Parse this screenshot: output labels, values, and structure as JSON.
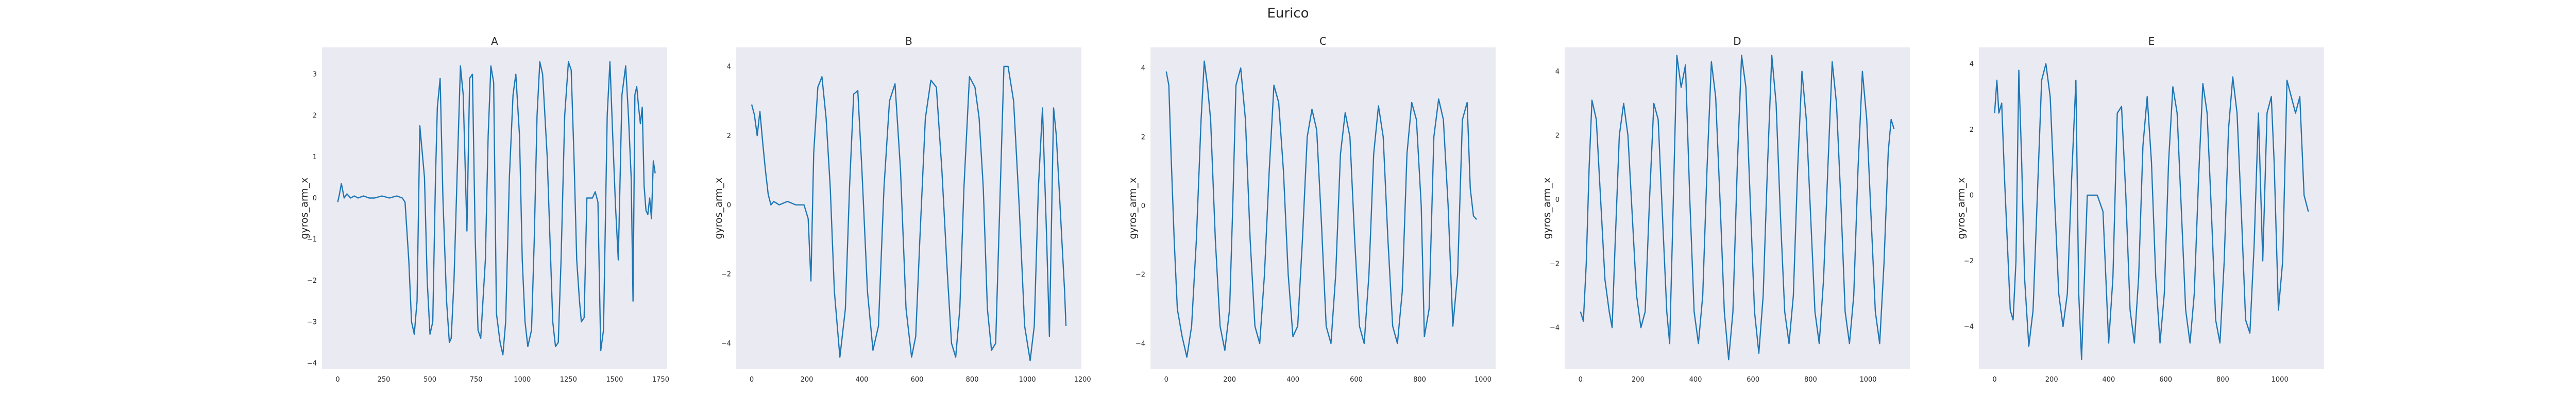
{
  "figure": {
    "title": "Eurico"
  },
  "chart_data": [
    {
      "type": "line",
      "title": "A",
      "ylabel": "gyros_arm_x",
      "xlim": [
        -85,
        1785
      ],
      "ylim": [
        -4.15,
        3.65
      ],
      "xticks": [
        0,
        250,
        500,
        750,
        1000,
        1250,
        1500,
        1750
      ],
      "yticks": [
        -4,
        -3,
        -2,
        -1,
        0,
        1,
        2,
        3
      ],
      "legend": "none",
      "grid": false,
      "color": "#1f77b4",
      "series": [
        {
          "x": [
            0,
            10,
            20,
            35,
            50,
            70,
            90,
            110,
            140,
            170,
            200,
            240,
            280,
            320,
            350,
            365,
            385,
            400,
            415,
            430,
            445,
            470,
            485,
            500,
            515,
            530,
            540,
            555,
            570,
            590,
            605,
            615,
            630,
            650,
            665,
            680,
            700,
            715,
            730,
            745,
            760,
            775,
            800,
            815,
            830,
            845,
            860,
            880,
            895,
            910,
            930,
            950,
            965,
            985,
            1000,
            1015,
            1030,
            1050,
            1065,
            1080,
            1095,
            1110,
            1135,
            1150,
            1165,
            1180,
            1195,
            1210,
            1230,
            1250,
            1265,
            1280,
            1295,
            1310,
            1320,
            1335,
            1350,
            1365,
            1380,
            1395,
            1410,
            1425,
            1440,
            1460,
            1475,
            1490,
            1505,
            1520,
            1540,
            1560,
            1575,
            1590,
            1600,
            1610,
            1620,
            1630,
            1640,
            1650,
            1660,
            1670,
            1680,
            1690,
            1700,
            1710,
            1720
          ],
          "y": [
            -0.1,
            0.1,
            0.35,
            0.0,
            0.1,
            0.0,
            0.05,
            0.0,
            0.05,
            0.0,
            0.0,
            0.05,
            0.0,
            0.05,
            0.0,
            -0.1,
            -1.5,
            -3.0,
            -3.3,
            -2.5,
            1.75,
            0.5,
            -2.0,
            -3.3,
            -3.0,
            0.5,
            2.2,
            2.9,
            0.0,
            -2.5,
            -3.5,
            -3.4,
            -2.0,
            1.0,
            3.2,
            2.5,
            -0.8,
            2.9,
            3.0,
            -1.0,
            -3.2,
            -3.4,
            -1.5,
            1.5,
            3.2,
            2.8,
            -2.8,
            -3.5,
            -3.8,
            -3.0,
            0.5,
            2.5,
            3.0,
            1.5,
            -1.5,
            -3.0,
            -3.6,
            -3.2,
            -1.0,
            2.0,
            3.3,
            3.0,
            1.0,
            -1.0,
            -3.0,
            -3.6,
            -3.5,
            -1.5,
            2.0,
            3.3,
            3.1,
            1.0,
            -1.5,
            -2.5,
            -3.0,
            -2.9,
            0.0,
            0.0,
            0.0,
            0.15,
            -0.1,
            -3.7,
            -3.2,
            2.0,
            3.3,
            1.5,
            -0.2,
            -1.5,
            2.5,
            3.2,
            2.0,
            0.5,
            -2.5,
            2.5,
            2.7,
            2.2,
            1.8,
            2.2,
            0.3,
            -0.3,
            -0.4,
            0.0,
            -0.5,
            0.9,
            0.6
          ]
        }
      ]
    },
    {
      "type": "line",
      "title": "B",
      "ylabel": "gyros_arm_x",
      "xlim": [
        -56,
        1196
      ],
      "ylim": [
        -4.75,
        4.55
      ],
      "xticks": [
        0,
        200,
        400,
        600,
        800,
        1000,
        1200
      ],
      "yticks": [
        -4,
        -2,
        0,
        2,
        4
      ],
      "legend": "none",
      "grid": false,
      "color": "#1f77b4",
      "series": [
        {
          "x": [
            0,
            10,
            20,
            30,
            40,
            50,
            60,
            70,
            80,
            100,
            130,
            160,
            190,
            205,
            215,
            225,
            240,
            255,
            270,
            285,
            300,
            320,
            340,
            355,
            370,
            385,
            400,
            420,
            440,
            460,
            480,
            500,
            520,
            540,
            560,
            580,
            595,
            610,
            630,
            650,
            670,
            690,
            710,
            725,
            740,
            755,
            770,
            790,
            810,
            825,
            840,
            855,
            870,
            885,
            900,
            915,
            930,
            950,
            970,
            990,
            1010,
            1025,
            1040,
            1055,
            1070,
            1080,
            1095,
            1105,
            1115,
            1125,
            1135,
            1140
          ],
          "y": [
            2.9,
            2.6,
            2.0,
            2.7,
            1.8,
            1.0,
            0.3,
            0.0,
            0.1,
            0.0,
            0.1,
            0.0,
            0.0,
            -0.4,
            -2.2,
            1.5,
            3.4,
            3.7,
            2.5,
            0.5,
            -2.5,
            -4.4,
            -3.0,
            0.5,
            3.2,
            3.3,
            1.0,
            -2.5,
            -4.2,
            -3.5,
            0.5,
            3.0,
            3.5,
            1.0,
            -3.0,
            -4.4,
            -3.8,
            -1.0,
            2.5,
            3.6,
            3.4,
            1.0,
            -2.0,
            -4.0,
            -4.4,
            -3.0,
            0.5,
            3.7,
            3.4,
            2.5,
            0.5,
            -3.0,
            -4.2,
            -4.0,
            0.0,
            4.0,
            4.0,
            3.0,
            0.0,
            -3.5,
            -4.5,
            -3.5,
            0.5,
            2.8,
            -1.0,
            -3.8,
            2.8,
            2.0,
            0.5,
            -1.0,
            -2.5,
            -3.5
          ]
        }
      ]
    },
    {
      "type": "line",
      "title": "C",
      "ylabel": "gyros_arm_x",
      "xlim": [
        -50,
        1040
      ],
      "ylim": [
        -4.75,
        4.6
      ],
      "xticks": [
        0,
        200,
        400,
        600,
        800,
        1000
      ],
      "yticks": [
        -4,
        -2,
        0,
        2,
        4
      ],
      "legend": "none",
      "grid": false,
      "color": "#1f77b4",
      "series": [
        {
          "x": [
            0,
            8,
            15,
            25,
            35,
            50,
            65,
            80,
            95,
            110,
            120,
            130,
            140,
            155,
            170,
            185,
            200,
            210,
            220,
            235,
            250,
            265,
            280,
            295,
            310,
            325,
            340,
            355,
            370,
            385,
            400,
            415,
            430,
            445,
            460,
            475,
            490,
            505,
            520,
            535,
            550,
            565,
            580,
            595,
            610,
            625,
            640,
            655,
            670,
            685,
            700,
            715,
            730,
            745,
            760,
            775,
            790,
            805,
            815,
            830,
            845,
            860,
            875,
            890,
            905,
            920,
            935,
            950,
            960,
            970,
            980
          ],
          "y": [
            3.9,
            3.5,
            1.5,
            -1.0,
            -3.0,
            -3.8,
            -4.4,
            -3.5,
            -1.0,
            2.5,
            4.2,
            3.5,
            2.5,
            -1.0,
            -3.5,
            -4.2,
            -3.0,
            0.0,
            3.5,
            4.0,
            2.5,
            -1.0,
            -3.5,
            -4.0,
            -2.0,
            1.0,
            3.5,
            3.0,
            1.0,
            -2.0,
            -3.8,
            -3.5,
            -1.0,
            2.0,
            2.8,
            2.2,
            -0.5,
            -3.5,
            -4.0,
            -2.0,
            1.5,
            2.7,
            2.0,
            -1.0,
            -3.5,
            -4.0,
            -2.0,
            1.5,
            2.9,
            2.0,
            -1.0,
            -3.5,
            -4.0,
            -2.5,
            1.5,
            3.0,
            2.5,
            0.0,
            -3.8,
            -3.0,
            2.0,
            3.1,
            2.5,
            0.0,
            -3.5,
            -2.0,
            2.5,
            3.0,
            0.5,
            -0.3,
            -0.4
          ]
        }
      ]
    },
    {
      "type": "line",
      "title": "D",
      "ylabel": "gyros_arm_x",
      "xlim": [
        -55,
        1145
      ],
      "ylim": [
        -5.3,
        4.75
      ],
      "xticks": [
        0,
        200,
        400,
        600,
        800,
        1000
      ],
      "yticks": [
        -4,
        -2,
        0,
        2,
        4
      ],
      "legend": "none",
      "grid": false,
      "color": "#1f77b4",
      "series": [
        {
          "x": [
            0,
            10,
            20,
            30,
            40,
            55,
            70,
            85,
            100,
            110,
            120,
            135,
            150,
            165,
            180,
            195,
            210,
            225,
            240,
            255,
            270,
            285,
            300,
            310,
            320,
            335,
            350,
            365,
            380,
            395,
            410,
            425,
            440,
            455,
            470,
            485,
            500,
            515,
            530,
            545,
            560,
            575,
            590,
            605,
            620,
            635,
            650,
            665,
            680,
            695,
            710,
            725,
            740,
            755,
            770,
            785,
            800,
            815,
            830,
            845,
            860,
            875,
            890,
            905,
            920,
            935,
            950,
            965,
            980,
            995,
            1010,
            1025,
            1040,
            1055,
            1070,
            1080,
            1090
          ],
          "y": [
            -3.5,
            -3.8,
            -2.0,
            1.0,
            3.1,
            2.5,
            0.0,
            -2.5,
            -3.5,
            -4.0,
            -1.5,
            2.0,
            3.0,
            2.0,
            -0.5,
            -3.0,
            -4.0,
            -3.5,
            0.0,
            3.0,
            2.5,
            -0.5,
            -3.5,
            -4.5,
            -1.0,
            4.5,
            3.5,
            4.2,
            0.0,
            -3.5,
            -4.5,
            -3.0,
            1.0,
            4.3,
            3.2,
            0.0,
            -3.5,
            -5.0,
            -3.5,
            1.0,
            4.5,
            3.5,
            0.0,
            -3.5,
            -4.8,
            -3.0,
            1.0,
            4.5,
            3.0,
            -0.5,
            -3.5,
            -4.5,
            -3.0,
            1.0,
            4.0,
            2.5,
            -0.5,
            -3.5,
            -4.5,
            -2.5,
            1.0,
            4.3,
            3.0,
            0.0,
            -3.5,
            -4.5,
            -3.0,
            1.0,
            4.0,
            2.5,
            -0.5,
            -3.5,
            -4.5,
            -2.0,
            1.5,
            2.5,
            2.2
          ]
        }
      ]
    },
    {
      "type": "line",
      "title": "E",
      "ylabel": "gyros_arm_x",
      "xlim": [
        -55,
        1155
      ],
      "ylim": [
        -5.3,
        4.5
      ],
      "xticks": [
        0,
        200,
        400,
        600,
        800,
        1000
      ],
      "yticks": [
        -4,
        -2,
        0,
        2,
        4
      ],
      "legend": "none",
      "grid": false,
      "color": "#1f77b4",
      "series": [
        {
          "x": [
            0,
            8,
            15,
            25,
            35,
            45,
            55,
            65,
            75,
            85,
            95,
            105,
            120,
            135,
            150,
            165,
            180,
            195,
            210,
            225,
            240,
            255,
            270,
            285,
            295,
            305,
            315,
            325,
            340,
            360,
            380,
            400,
            415,
            430,
            445,
            460,
            475,
            490,
            505,
            520,
            535,
            550,
            565,
            580,
            595,
            610,
            625,
            640,
            655,
            670,
            685,
            700,
            715,
            730,
            745,
            760,
            775,
            790,
            805,
            820,
            835,
            850,
            865,
            880,
            895,
            910,
            925,
            940,
            955,
            970,
            980,
            995,
            1010,
            1025,
            1040,
            1055,
            1070,
            1085,
            1100
          ],
          "y": [
            2.5,
            3.5,
            2.5,
            2.8,
            0.5,
            -1.5,
            -3.5,
            -3.8,
            -2.0,
            3.8,
            1.0,
            -2.5,
            -4.6,
            -3.5,
            0.0,
            3.5,
            4.0,
            3.0,
            0.0,
            -3.0,
            -4.0,
            -3.0,
            0.5,
            3.5,
            -3.0,
            -5.0,
            -2.5,
            0.0,
            0.0,
            0.0,
            -0.5,
            -4.5,
            -2.5,
            2.5,
            2.7,
            0.0,
            -3.5,
            -4.5,
            -2.5,
            1.5,
            3.0,
            1.0,
            -2.5,
            -4.5,
            -3.0,
            1.0,
            3.3,
            2.5,
            -0.5,
            -3.5,
            -4.5,
            -3.0,
            0.5,
            3.4,
            2.5,
            -0.5,
            -3.8,
            -4.5,
            -2.0,
            2.0,
            3.6,
            2.5,
            -0.5,
            -3.8,
            -4.2,
            -1.5,
            2.5,
            -2.0,
            2.5,
            3.0,
            1.0,
            -3.5,
            -2.0,
            3.5,
            3.0,
            2.5,
            3.0,
            0.0,
            -0.5
          ]
        }
      ]
    }
  ]
}
